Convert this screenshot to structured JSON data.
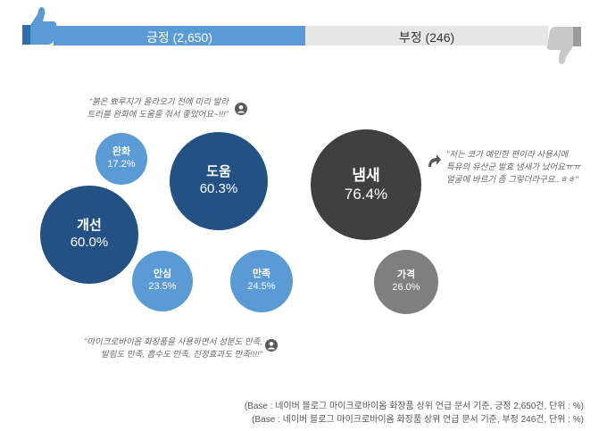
{
  "header": {
    "positive_label": "긍정 (2,650)",
    "negative_label": "부정 (246)",
    "positive_color": "#5b9bd5",
    "negative_color": "#e6e6e6"
  },
  "icons": {
    "thumb_up": "thumbs-up-icon",
    "thumb_down": "thumbs-down-icon",
    "person": "person-icon",
    "curved_arrow": "curved-arrow-icon"
  },
  "quotes": {
    "top_left": [
      "\"붉은 뾰루지가 올라오기 전에 미리 발라",
      "트러블 완화에 도움을 줘서 좋았어요~!!!\""
    ],
    "bottom_left": [
      "\"마이크로바이옴 화장품을 사용하면서 성분도 만족,",
      "발림도 만족, 흡수도 만족, 진정효과도 만족!!!!\""
    ],
    "right": [
      "\"저는 코가 예민한 편이라 사용시에",
      "특유의 유산균 발효 냄새가 났어요ㅠㅠ",
      "얼굴에 바르기 좀 그렇더라구요..ㅎㅎ\""
    ]
  },
  "notes": [
    "(Base : 네이버 블로그 마이크로바이옴 화장품 상위 언급 문서 기준, 긍정 2,650건, 단위 : %)",
    "(Base : 네이버 블로그 마이크로바이옴 화장품 상위 언급 문서 기준, 부정 246건, 단위 : %)"
  ],
  "chart_data": {
    "type": "bubble",
    "unit": "%",
    "series": [
      {
        "name": "긍정 (2,650)",
        "points": [
          {
            "label": "완화",
            "value": 17.2,
            "display": "17.2%",
            "color": "#5b9bd5"
          },
          {
            "label": "도움",
            "value": 60.3,
            "display": "60.3%",
            "color": "#235183"
          },
          {
            "label": "개선",
            "value": 60.0,
            "display": "60.0%",
            "color": "#235183"
          },
          {
            "label": "안심",
            "value": 23.5,
            "display": "23.5%",
            "color": "#5b9bd5"
          },
          {
            "label": "만족",
            "value": 24.5,
            "display": "24.5%",
            "color": "#5b9bd5"
          }
        ]
      },
      {
        "name": "부정 (246)",
        "points": [
          {
            "label": "냄새",
            "value": 76.4,
            "display": "76.4%",
            "color": "#404040"
          },
          {
            "label": "가격",
            "value": 26.0,
            "display": "26.0%",
            "color": "#7f7f7f"
          }
        ]
      }
    ]
  }
}
